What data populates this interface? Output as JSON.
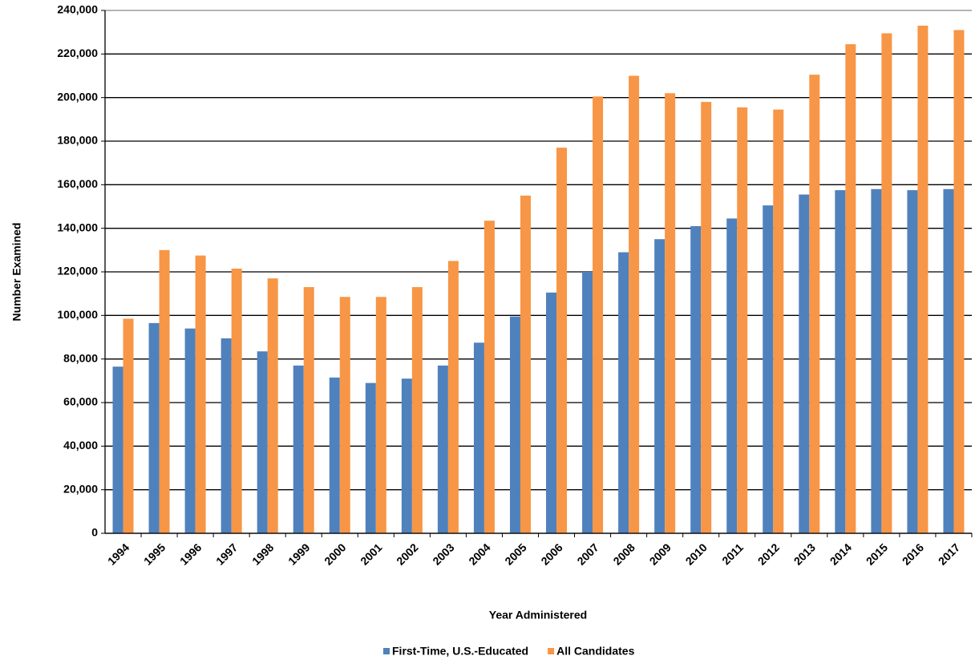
{
  "chart_data": {
    "type": "bar",
    "x_label": "Year Administered",
    "y_label": "Number Examined",
    "categories": [
      "1994",
      "1995",
      "1996",
      "1997",
      "1998",
      "1999",
      "2000",
      "2001",
      "2002",
      "2003",
      "2004",
      "2005",
      "2006",
      "2007",
      "2008",
      "2009",
      "2010",
      "2011",
      "2012",
      "2013",
      "2014",
      "2015",
      "2016",
      "2017"
    ],
    "series": [
      {
        "name": "First-Time, U.S.-Educated",
        "color": "#4f81bd",
        "values": [
          76500,
          96500,
          94000,
          89500,
          83500,
          77000,
          71500,
          69000,
          71000,
          77000,
          87500,
          99500,
          110500,
          120000,
          129000,
          135000,
          141000,
          144500,
          150500,
          155500,
          157500,
          158000,
          157500,
          158000
        ]
      },
      {
        "name": "All Candidates",
        "color": "#f79646",
        "values": [
          98500,
          130000,
          127500,
          121500,
          117000,
          113000,
          108500,
          108500,
          113000,
          125000,
          143500,
          155000,
          177000,
          200500,
          210000,
          202000,
          198000,
          195500,
          194500,
          210500,
          224500,
          229500,
          233000,
          231000
        ]
      }
    ],
    "ylim": [
      0,
      240000
    ],
    "yticks": [
      0,
      {
        "value": 20000,
        "label": "20,000"
      },
      {
        "value": 40000,
        "label": "40,000"
      },
      {
        "value": 60000,
        "label": "60,000"
      },
      {
        "value": 80000,
        "label": "80,000"
      },
      {
        "value": 100000,
        "label": "100,000"
      },
      {
        "value": 120000,
        "label": "120,000"
      },
      {
        "value": 140000,
        "label": "140,000"
      },
      {
        "value": 160000,
        "label": "160,000"
      },
      {
        "value": 180000,
        "label": "180,000"
      },
      {
        "value": 200000,
        "label": "200,000"
      },
      {
        "value": 220000,
        "label": "220,000"
      },
      {
        "value": 240000,
        "label": "240,000"
      }
    ],
    "grid": true,
    "legend": "bottom"
  }
}
